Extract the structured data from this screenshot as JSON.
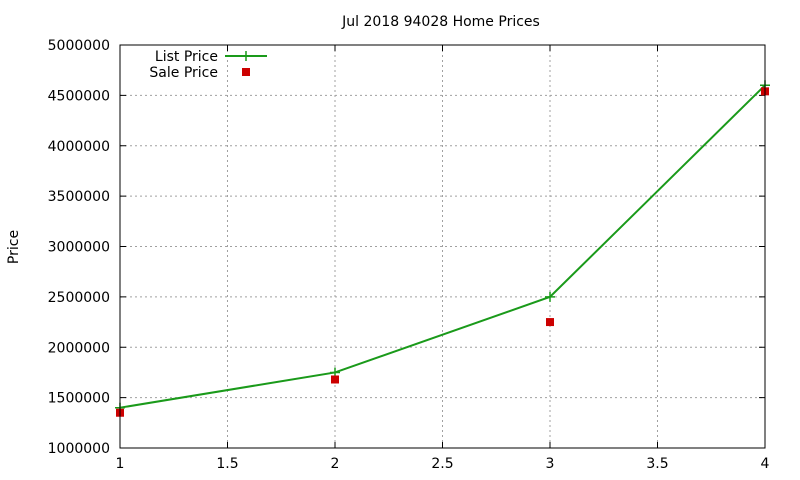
{
  "chart_data": {
    "type": "line",
    "title": "Jul 2018 94028 Home Prices",
    "xlabel": "",
    "ylabel": "Price",
    "xlim": [
      1,
      4
    ],
    "ylim": [
      1000000,
      5000000
    ],
    "x_ticks": [
      "1",
      "1.5",
      "2",
      "2.5",
      "3",
      "3.5",
      "4"
    ],
    "y_ticks": [
      "1000000",
      "1500000",
      "2000000",
      "2500000",
      "3000000",
      "3500000",
      "4000000",
      "4500000",
      "5000000"
    ],
    "grid": true,
    "legend_position": "top-left",
    "series": [
      {
        "name": "List Price",
        "style": "line-with-plus-markers",
        "color": "#1a9a1a",
        "x": [
          1,
          2,
          3,
          4
        ],
        "values": [
          1400000,
          1750000,
          2500000,
          4600000
        ]
      },
      {
        "name": "Sale Price",
        "style": "square-markers",
        "color": "#cc0000",
        "x": [
          1,
          2,
          3,
          4
        ],
        "values": [
          1350000,
          1680000,
          2250000,
          4540000
        ]
      }
    ]
  }
}
